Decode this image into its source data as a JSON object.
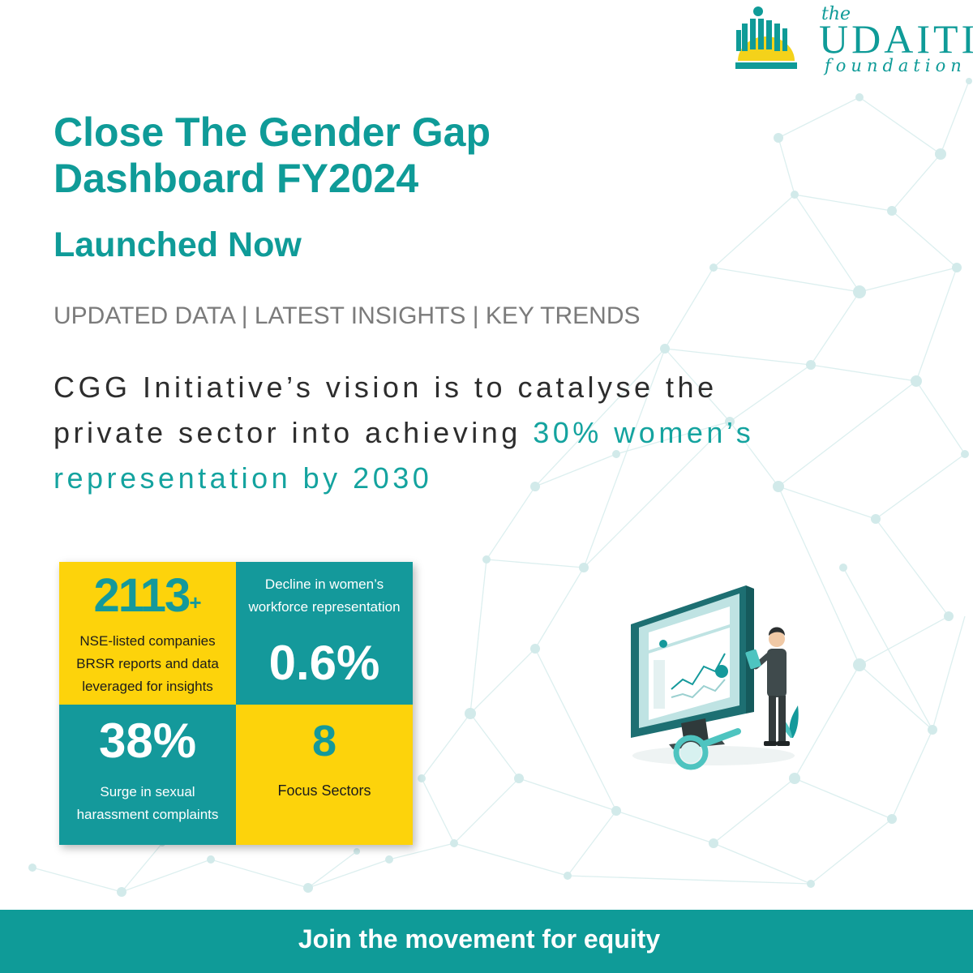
{
  "logo": {
    "the": "the",
    "name": "UDAITI",
    "sub": "foundation"
  },
  "headline": {
    "title_line1": "Close The Gender Gap",
    "title_line2": "Dashboard FY2024",
    "subtitle": "Launched Now",
    "tagline": "UPDATED DATA | LATEST INSIGHTS | KEY TRENDS"
  },
  "vision": {
    "part1": "CGG Initiative’s vision is to catalyse the private sector into achieving ",
    "highlight": "30% women’s representation by 2030"
  },
  "stats": {
    "companies": {
      "value": "2113",
      "suffix": "+",
      "line1": "NSE-listed companies",
      "line2": "BRSR reports and data",
      "line3": "leveraged for insights"
    },
    "decline": {
      "line1": "Decline in women’s",
      "line2": "workforce representation",
      "value": "0.6%"
    },
    "surge": {
      "value": "38%",
      "line1": "Surge in sexual",
      "line2": "harassment complaints"
    },
    "sectors": {
      "value": "8",
      "label": "Focus Sectors"
    }
  },
  "footer": {
    "cta": "Join the movement for equity"
  },
  "colors": {
    "teal": "#0f9b98",
    "teal_cell": "#14999b",
    "yellow": "#fdd30b",
    "gray_text": "#7b7b7b",
    "dark_text": "#2d2d2d"
  },
  "icons": {
    "logo_mark": "rising-sun-people-icon",
    "illustration": "analyst-dashboard-illustration"
  }
}
